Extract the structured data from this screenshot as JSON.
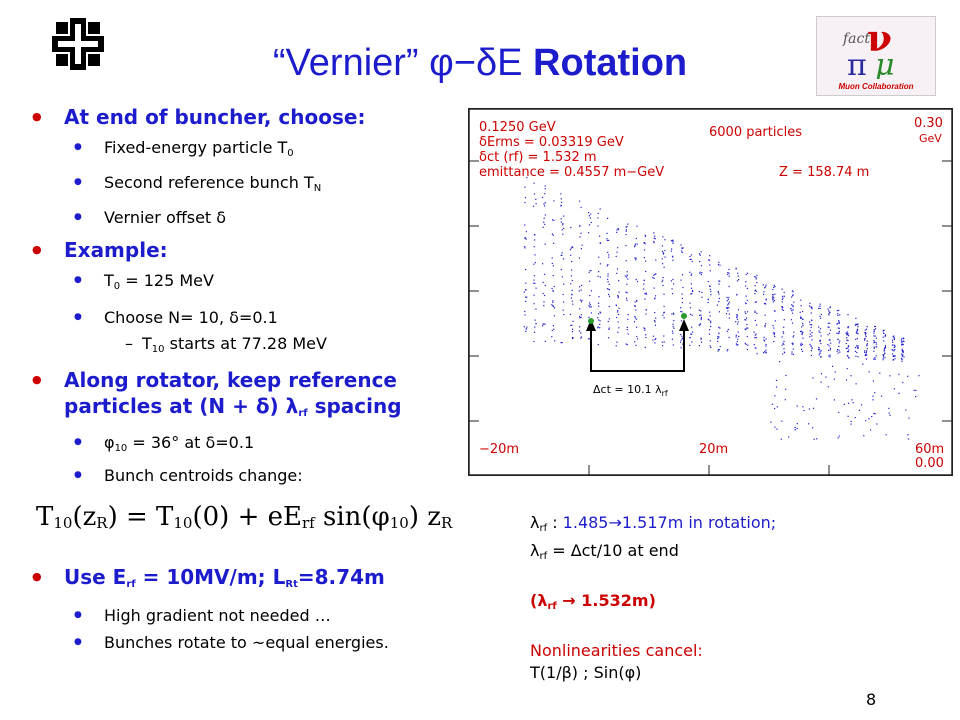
{
  "slide": {
    "title_part1": "“Vernier” φ−δE",
    "title_part2": "Rotation",
    "page_number": "8"
  },
  "logos": {
    "right_logo_text": "Muon Collaboration"
  },
  "bullets": {
    "b1": "At end of buncher, choose:",
    "b1_1": "Fixed-energy particle T",
    "b1_1_sub": "0",
    "b1_2": "Second reference bunch T",
    "b1_2_sub": "N",
    "b1_3": "Vernier offset δ",
    "b2": "Example:",
    "b2_1a": "T",
    "b2_1sub": "0",
    "b2_1b": " = 125 MeV",
    "b2_2": "Choose N= 10, δ=0.1",
    "b2_2_1a": "T",
    "b2_2_1sub": "10",
    "b2_2_1b": " starts at 77.28 MeV",
    "b3_line1": "Along rotator, keep reference",
    "b3_line2a": "particles at  (N + δ) λ",
    "b3_line2sub": "rf",
    "b3_line2b": " spacing",
    "b3_1a": "φ",
    "b3_1sub": "10",
    "b3_1b": " = 36° at δ=0.1",
    "b3_2": "Bunch centroids change:",
    "b4a": "Use E",
    "b4sub1": "rf",
    "b4b": " = 10MV/m; L",
    "b4sub2": "Rt",
    "b4c": "=8.74m",
    "b4_1": "High gradient not needed …",
    "b4_2": "Bunches rotate to ~equal energies."
  },
  "equation": {
    "lhs": "T",
    "lhs_sub": "10",
    "lhs_arg": "(z",
    "lhs_arg_sub": "R",
    "mid": ") = T",
    "mid_sub": "10",
    "mid2": "(0) + eE",
    "mid2_sub": "rf",
    "mid3": " sin(φ",
    "mid3_sub": "10",
    "mid4": ") z",
    "mid4_sub": "R"
  },
  "right_notes": {
    "l1a": "λ",
    "l1sub": "rf",
    "l1b": " : ",
    "l1c": "1.485→1.517m in rotation;",
    "l2a": "λ",
    "l2sub": "rf",
    "l2b": " = Δct/10 at end",
    "l3a": "(λ",
    "l3sub": "rf",
    "l3b": " → 1.532m)",
    "l4": "Nonlinearities cancel:",
    "l5": "T(1/β)  ;   Sin(φ)"
  },
  "plot": {
    "info_lines": [
      "0.1250  GeV",
      "δErms = 0.03319  GeV",
      "δct (rf) =   1.532 m",
      "emittance = 0.4557 m−GeV"
    ],
    "particles": "6000  particles",
    "z_label": "Z =  158.74  m",
    "ymax_val": "0.30",
    "ymax_unit": "GeV",
    "ymin": "0.00",
    "x_ticks": [
      "−20m",
      "20m",
      "60m"
    ],
    "annotation": "Δct = 10.1 λ",
    "annotation_sub": "rf"
  },
  "colors": {
    "title": "#1c1ccc",
    "accent_red": "#cc0000",
    "particles": "#2020d0"
  }
}
